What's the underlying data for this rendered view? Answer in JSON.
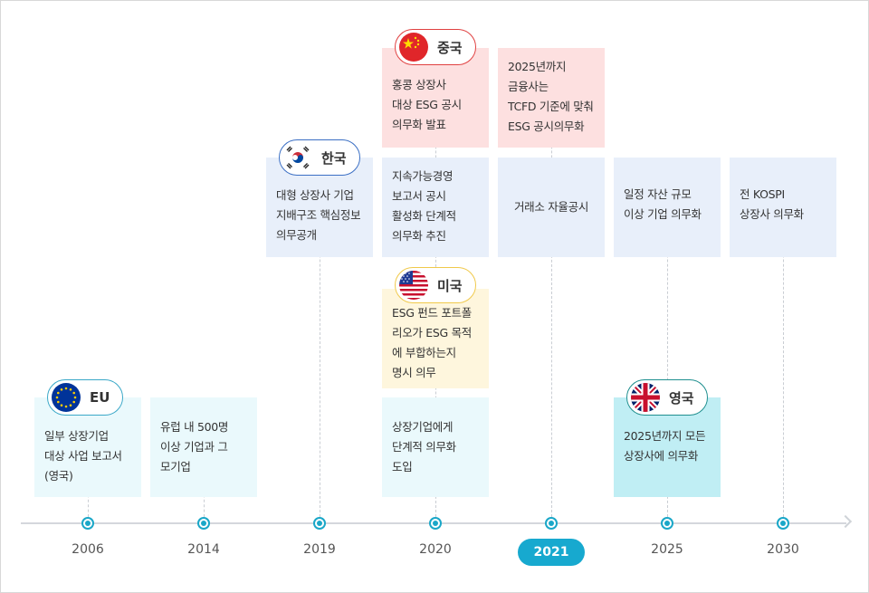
{
  "years": [
    "2006",
    "2014",
    "2019",
    "2020",
    "2021",
    "2025",
    "2030"
  ],
  "active_year": "2021",
  "badges": {
    "korea": "한국",
    "china": "중국",
    "usa": "미국",
    "eu": "EU",
    "uk": "영국"
  },
  "cards": {
    "korea_2019": "대형 상장사 기업\n지배구조 핵심정보\n의무공개",
    "china_2020": "홍콩 상장사\n대상 ESG 공시\n의무화 발표",
    "korea_2020": "지속가능경영\n보고서 공시\n활성화 단계적\n의무화 추진",
    "usa_2020": "ESG 펀드 포트폴\n리오가 ESG 목적\n에 부합하는지\n명시 의무",
    "eu_2020": "상장기업에게\n단계적 의무화\n도입",
    "china_2021": "2025년까지\n금융사는\nTCFD 기준에 맞춰\nESG 공시의무화",
    "korea_2021": "거래소 자율공시",
    "korea_2025": "일정 자산 규모\n이상 기업 의무화",
    "korea_2030": "전 KOSPI\n상장사 의무화",
    "eu_2006": "일부 상장기업\n대상 사업 보고서\n(영국)",
    "eu_2014": "유럽 내 500명\n이상 기업과 그\n모기업",
    "uk_2025": "2025년까지 모든\n상장사에 의무화"
  },
  "colors": {
    "accent": "#17a9cf",
    "korea_card": "#e8effa",
    "china_card": "#fde0e0",
    "usa_card": "#fef6dd",
    "eu_card": "#eaf9fc",
    "uk_card": "#c0eef4"
  }
}
